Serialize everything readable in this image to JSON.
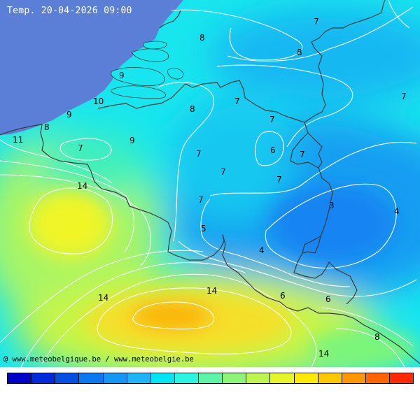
{
  "title": "Temp. 20-04-2026 09:00",
  "credit": "@ www.meteobelgique.be / www.meteobelgie.be",
  "colors": {
    "sea": "#5b7fd6",
    "border": "#3a3a3a",
    "isoline": "#ffffff"
  },
  "contour_labels": [
    {
      "id": "lbl-7-ne",
      "text": "7"
    },
    {
      "id": "lbl-8-n",
      "text": "8"
    },
    {
      "id": "lbl-8-ne",
      "text": "8"
    },
    {
      "id": "lbl-7-e",
      "text": "7"
    },
    {
      "id": "lbl-9-zeeland",
      "text": "9"
    },
    {
      "id": "lbl-10",
      "text": "10"
    },
    {
      "id": "lbl-9-coast",
      "text": "9"
    },
    {
      "id": "lbl-8-coast",
      "text": "8"
    },
    {
      "id": "lbl-11",
      "text": "11"
    },
    {
      "id": "lbl-7-fl",
      "text": "7"
    },
    {
      "id": "lbl-9-fl",
      "text": "9"
    },
    {
      "id": "lbl-8-center",
      "text": "8"
    },
    {
      "id": "lbl-7-center",
      "text": "7"
    },
    {
      "id": "lbl-7-limb",
      "text": "7"
    },
    {
      "id": "lbl-6-limb",
      "text": "6"
    },
    {
      "id": "lbl-7-limb2",
      "text": "7"
    },
    {
      "id": "lbl-7-mid1",
      "text": "7"
    },
    {
      "id": "lbl-7-mid2",
      "text": "7"
    },
    {
      "id": "lbl-7-liege",
      "text": "7"
    },
    {
      "id": "lbl-7-namur",
      "text": "7"
    },
    {
      "id": "lbl-14-west",
      "text": "14"
    },
    {
      "id": "lbl-5",
      "text": "5"
    },
    {
      "id": "lbl-3",
      "text": "3"
    },
    {
      "id": "lbl-4-east",
      "text": "4"
    },
    {
      "id": "lbl-4-south",
      "text": "4"
    },
    {
      "id": "lbl-14-south",
      "text": "14"
    },
    {
      "id": "lbl-14-sw",
      "text": "14"
    },
    {
      "id": "lbl-6-lux",
      "text": "6"
    },
    {
      "id": "lbl-6-lor",
      "text": "6"
    },
    {
      "id": "lbl-8-se",
      "text": "8"
    },
    {
      "id": "lbl-14-bottom",
      "text": "14"
    }
  ],
  "legend": {
    "colors": [
      "#0000c8",
      "#0028dc",
      "#0050e6",
      "#0a78f0",
      "#1496f5",
      "#1eb4f8",
      "#00e6f5",
      "#2af5e0",
      "#5af5a8",
      "#8cf578",
      "#bef550",
      "#e6f528",
      "#ffeb00",
      "#ffc800",
      "#ff9600",
      "#ff6400",
      "#ff2800"
    ]
  }
}
